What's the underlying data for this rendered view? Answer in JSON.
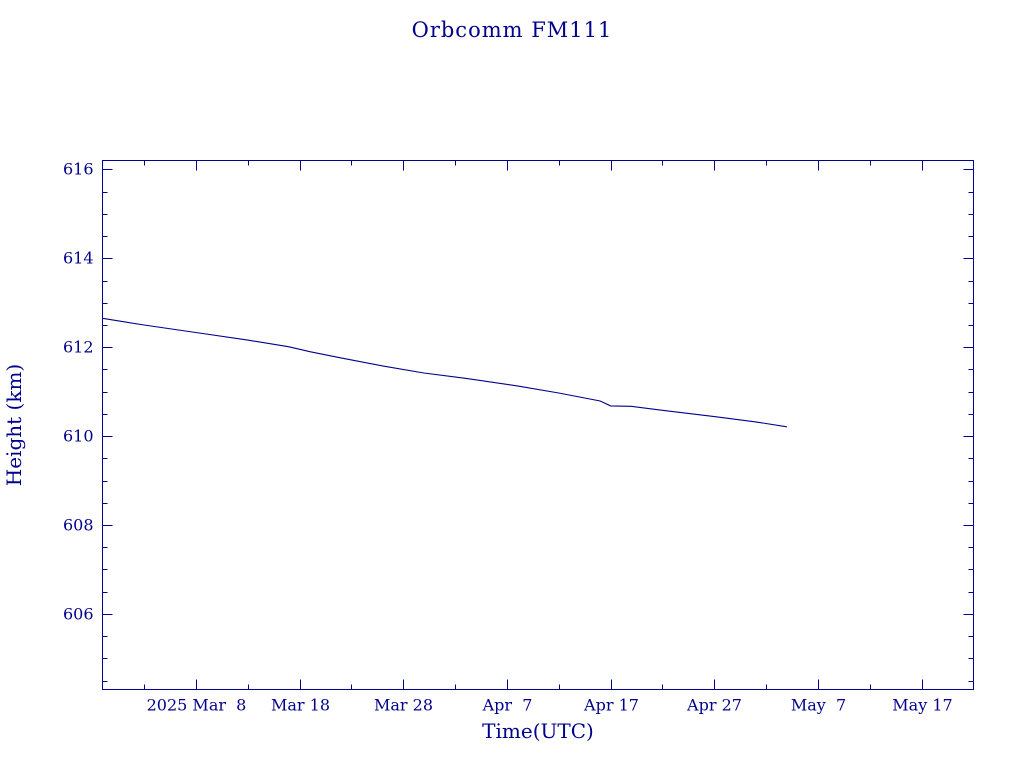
{
  "chart_data": {
    "type": "line",
    "title": "Orbcomm FM111",
    "xlabel": "Time(UTC)",
    "ylabel": "Height (km)",
    "xlim": [
      "2025-02-27",
      "2025-05-22"
    ],
    "ylim": [
      604.3,
      616.2
    ],
    "grid": false,
    "x_ticks": [
      {
        "date": "2025-03-08",
        "label": "2025 Mar  8"
      },
      {
        "date": "2025-03-18",
        "label": "Mar 18"
      },
      {
        "date": "2025-03-28",
        "label": "Mar 28"
      },
      {
        "date": "2025-04-07",
        "label": "Apr  7"
      },
      {
        "date": "2025-04-17",
        "label": "Apr 17"
      },
      {
        "date": "2025-04-27",
        "label": "Apr 27"
      },
      {
        "date": "2025-05-07",
        "label": "May  7"
      },
      {
        "date": "2025-05-17",
        "label": "May 17"
      }
    ],
    "y_ticks": [
      {
        "value": 606,
        "label": "606"
      },
      {
        "value": 608,
        "label": "608"
      },
      {
        "value": 610,
        "label": "610"
      },
      {
        "value": 612,
        "label": "612"
      },
      {
        "value": 614,
        "label": "614"
      },
      {
        "value": 616,
        "label": "616"
      }
    ],
    "series": [
      {
        "color": "#00008b",
        "points": [
          {
            "x": "2025-02-27",
            "y": 612.65
          },
          {
            "x": "2025-03-03",
            "y": 612.5
          },
          {
            "x": "2025-03-08",
            "y": 612.33
          },
          {
            "x": "2025-03-13",
            "y": 612.16
          },
          {
            "x": "2025-03-17",
            "y": 612.01
          },
          {
            "x": "2025-03-19",
            "y": 611.9
          },
          {
            "x": "2025-03-22",
            "y": 611.76
          },
          {
            "x": "2025-03-26",
            "y": 611.58
          },
          {
            "x": "2025-03-30",
            "y": 611.42
          },
          {
            "x": "2025-04-03",
            "y": 611.3
          },
          {
            "x": "2025-04-08",
            "y": 611.13
          },
          {
            "x": "2025-04-12",
            "y": 610.97
          },
          {
            "x": "2025-04-16",
            "y": 610.79
          },
          {
            "x": "2025-04-17",
            "y": 610.68
          },
          {
            "x": "2025-04-19",
            "y": 610.67
          },
          {
            "x": "2025-04-22",
            "y": 610.58
          },
          {
            "x": "2025-04-27",
            "y": 610.44
          },
          {
            "x": "2025-05-01",
            "y": 610.32
          },
          {
            "x": "2025-05-04",
            "y": 610.21
          }
        ]
      }
    ]
  }
}
